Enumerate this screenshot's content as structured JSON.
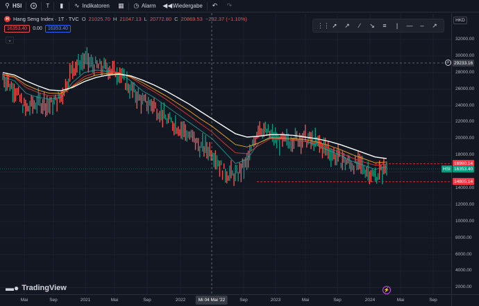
{
  "toolbar": {
    "symbol": "HSI",
    "add_label": "+",
    "interval": "T",
    "indicators_label": "Indikatoren",
    "alarm_label": "Alarm",
    "replay_label": "Wiedergabe"
  },
  "legend": {
    "logo_letter": "H",
    "title": "Hang Seng Index · 1T · TVC",
    "open_label": "O",
    "open": "21025.70",
    "high_label": "H",
    "high": "21047.13",
    "low_label": "L",
    "low": "20772.80",
    "close_label": "C",
    "close": "20869.53",
    "change": "−232.37 (−1.10%)",
    "bid": "16353.40",
    "spread": "0.00",
    "ask": "16353.40"
  },
  "currency": "HKD",
  "price_axis": {
    "ticks": [
      "32000.00",
      "30000.00",
      "28000.00",
      "26000.00",
      "24000.00",
      "22000.00",
      "20000.00",
      "18000.00",
      "16000.00",
      "14000.00",
      "12000.00",
      "10000.00",
      "8000.00",
      "6000.00",
      "4000.00",
      "2000.00"
    ],
    "crosshair_price": "29233.16",
    "high_marker": "16980.14",
    "current": "16353.40",
    "low_marker": "14805.14",
    "symbol_tag": "HSI"
  },
  "time_axis": {
    "ticks": [
      "Mai",
      "Sep",
      "2021",
      "Mai",
      "Sep",
      "2022",
      "Sep",
      "2023",
      "Mai",
      "Sep",
      "2024",
      "Mai",
      "Sep"
    ],
    "crosshair_time": "Mi 04 Mai '22"
  },
  "brand": "TradingView",
  "colors": {
    "background": "#131722",
    "up": "#089981",
    "down": "#ef5350",
    "ma_white": "#ffffff",
    "ma_orange": "#f5a623",
    "ma_red": "#e53935",
    "ma_green": "#26a69a"
  },
  "chart_data": {
    "type": "line",
    "title": "Hang Seng Index · 1T · TVC",
    "ylim": [
      0,
      33000
    ],
    "series": [
      {
        "values": [
          27500,
          26000,
          23500,
          24500,
          24000,
          25000,
          28500,
          29500,
          28800,
          28500,
          28000,
          26000,
          24500,
          24000,
          22500,
          21500,
          20500,
          19000,
          18500,
          16000,
          15500,
          17000,
          21500,
          20500,
          19500,
          20000,
          20000,
          19500,
          18500,
          17500,
          17000,
          16500,
          15500,
          16500
        ]
      },
      {
        "values": [
          27500,
          27000,
          25500,
          25000,
          24800,
          25000,
          26800,
          28000,
          28300,
          28200,
          28000,
          27000,
          25800,
          25000,
          24000,
          23000,
          22000,
          21000,
          20000,
          18500,
          17000,
          17500,
          19500,
          20200,
          20000,
          19800,
          19700,
          19200,
          18600,
          18000,
          17300,
          16800,
          16300,
          16600
        ]
      },
      {
        "values": [
          27700,
          27400,
          26200,
          25600,
          25200,
          25300,
          26400,
          27500,
          28000,
          28100,
          28000,
          27400,
          26500,
          25700,
          24800,
          23800,
          22800,
          21800,
          20800,
          19500,
          18300,
          18200,
          19200,
          20000,
          20000,
          19800,
          19700,
          19400,
          18900,
          18300,
          17700,
          17200,
          16800,
          16900
        ]
      },
      {
        "values": [
          27800,
          27500,
          26500,
          25900,
          25500,
          25500,
          26300,
          27200,
          27700,
          27900,
          27900,
          27500,
          26800,
          26000,
          25200,
          24300,
          23400,
          22400,
          21500,
          20400,
          19300,
          19000,
          19500,
          20100,
          20100,
          20000,
          19900,
          19600,
          19200,
          18700,
          18100,
          17600,
          17100,
          17200
        ]
      },
      {
        "values": [
          28000,
          27700,
          27000,
          26400,
          25900,
          25800,
          26200,
          26900,
          27400,
          27700,
          27800,
          27600,
          27100,
          26500,
          25800,
          25000,
          24200,
          23300,
          22400,
          21500,
          20600,
          20200,
          20300,
          20500,
          20500,
          20400,
          20200,
          20000,
          19700,
          19300,
          18800,
          18300,
          17800,
          17600
        ]
      }
    ]
  }
}
